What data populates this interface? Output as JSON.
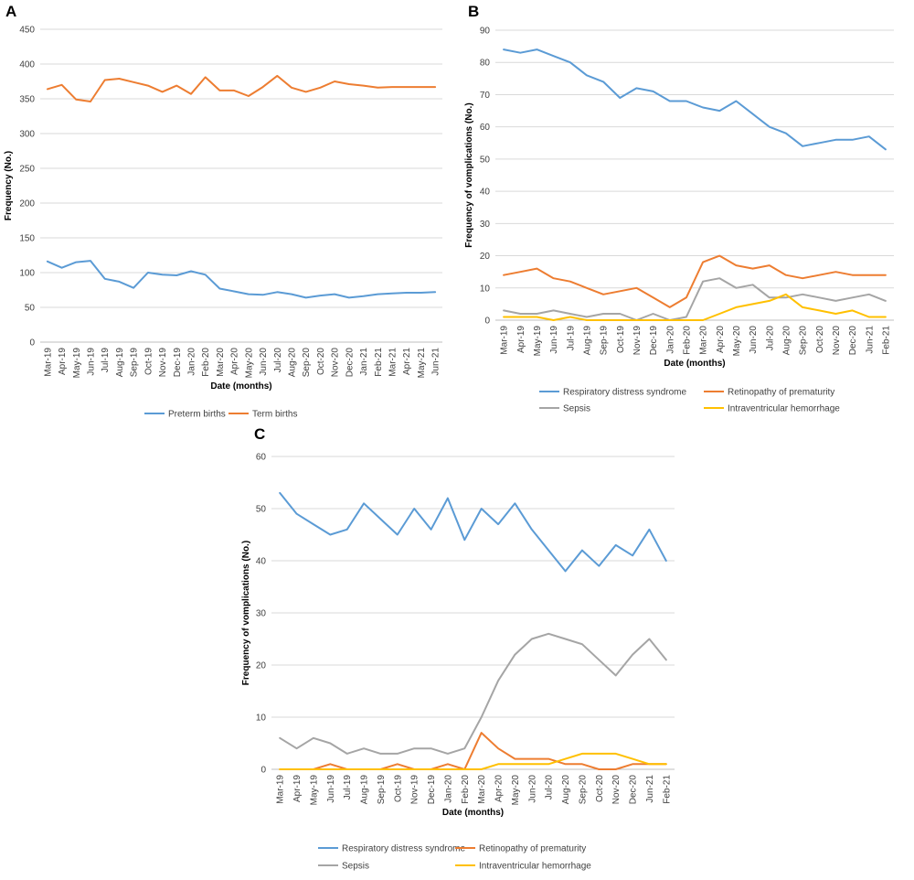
{
  "chart_data": [
    {
      "panel": "A",
      "type": "line",
      "xlabel": "Date (months)",
      "ylabel": "Frequency (No.)",
      "ylim": [
        0,
        450
      ],
      "yticks": [
        0,
        50,
        100,
        150,
        200,
        250,
        300,
        350,
        400,
        450
      ],
      "grid": true,
      "legend": "bottom",
      "categories": [
        "Mar-19",
        "Apr-19",
        "May-19",
        "Jun-19",
        "Jul-19",
        "Aug-19",
        "Sep-19",
        "Oct-19",
        "Nov-19",
        "Dec-19",
        "Jan-20",
        "Feb-20",
        "Mar-20",
        "Apr-20",
        "May-20",
        "Jun-20",
        "Jul-20",
        "Aug-20",
        "Sep-20",
        "Oct-20",
        "Nov-20",
        "Dec-20",
        "Jan-21",
        "Feb-21",
        "Mar-21",
        "Apr-21",
        "May-21",
        "Jun-21"
      ],
      "series": [
        {
          "name": "Preterm births",
          "color": "#5b9bd5",
          "values": [
            116,
            107,
            115,
            117,
            91,
            87,
            78,
            100,
            97,
            96,
            102,
            97,
            77,
            73,
            69,
            68,
            72,
            69,
            64,
            67,
            69,
            64,
            66,
            69,
            70,
            71,
            71,
            72
          ]
        },
        {
          "name": "Term births",
          "color": "#ed7d31",
          "values": [
            364,
            370,
            349,
            346,
            377,
            379,
            374,
            369,
            360,
            369,
            357,
            381,
            362,
            362,
            354,
            367,
            383,
            366,
            360,
            366,
            375,
            371,
            369,
            366,
            367,
            367,
            367,
            367
          ]
        }
      ]
    },
    {
      "panel": "B",
      "type": "line",
      "xlabel": "Date (months)",
      "ylabel": "Frequency of vomplications (No.)",
      "ylim": [
        0,
        90
      ],
      "yticks": [
        0,
        10,
        20,
        30,
        40,
        50,
        60,
        70,
        80,
        90
      ],
      "grid": true,
      "legend": "bottom",
      "categories": [
        "Mar-19",
        "Apr-19",
        "May-19",
        "Jun-19",
        "Jul-19",
        "Aug-19",
        "Sep-19",
        "Oct-19",
        "Nov-19",
        "Dec-19",
        "Jan-20",
        "Feb-20",
        "Mar-20",
        "Apr-20",
        "May-20",
        "Jun-20",
        "Jul-20",
        "Aug-20",
        "Sep-20",
        "Oct-20",
        "Nov-20",
        "Dec-20",
        "Jun-21",
        "Feb-21"
      ],
      "series": [
        {
          "name": "Respiratory distress syndrome",
          "color": "#5b9bd5",
          "values": [
            84,
            83,
            84,
            82,
            80,
            76,
            74,
            69,
            72,
            71,
            68,
            68,
            66,
            65,
            68,
            64,
            60,
            58,
            54,
            55,
            56,
            56,
            57,
            53
          ]
        },
        {
          "name": "Retinopathy of prematurity",
          "color": "#ed7d31",
          "values": [
            14,
            15,
            16,
            13,
            12,
            10,
            8,
            9,
            10,
            7,
            4,
            7,
            18,
            20,
            17,
            16,
            17,
            14,
            13,
            14,
            15,
            14,
            14,
            14
          ]
        },
        {
          "name": "Sepsis",
          "color": "#a5a5a5",
          "values": [
            3,
            2,
            2,
            3,
            2,
            1,
            2,
            2,
            0,
            2,
            0,
            1,
            12,
            13,
            10,
            11,
            7,
            7,
            8,
            7,
            6,
            7,
            8,
            6
          ]
        },
        {
          "name": "Intraventricular hemorrhage",
          "color": "#ffc000",
          "values": [
            1,
            1,
            1,
            0,
            1,
            0,
            0,
            0,
            0,
            0,
            0,
            0,
            0,
            2,
            4,
            5,
            6,
            8,
            4,
            3,
            2,
            3,
            1,
            1
          ]
        }
      ]
    },
    {
      "panel": "C",
      "type": "line",
      "xlabel": "Date (months)",
      "ylabel": "Frequency of vomplications (No.)",
      "ylim": [
        0,
        60
      ],
      "yticks": [
        0,
        10,
        20,
        30,
        40,
        50,
        60
      ],
      "grid": true,
      "legend": "bottom",
      "categories": [
        "Mar-19",
        "Apr-19",
        "May-19",
        "Jun-19",
        "Jul-19",
        "Aug-19",
        "Sep-19",
        "Oct-19",
        "Nov-19",
        "Dec-19",
        "Jan-20",
        "Feb-20",
        "Mar-20",
        "Apr-20",
        "May-20",
        "Jun-20",
        "Jul-20",
        "Aug-20",
        "Sep-20",
        "Oct-20",
        "Nov-20",
        "Dec-20",
        "Jun-21",
        "Feb-21"
      ],
      "series": [
        {
          "name": "Respiratory distress syndrome",
          "color": "#5b9bd5",
          "values": [
            53,
            49,
            47,
            45,
            46,
            51,
            48,
            45,
            50,
            46,
            52,
            44,
            50,
            47,
            51,
            46,
            42,
            38,
            42,
            39,
            43,
            41,
            46,
            40
          ]
        },
        {
          "name": "Retinopathy of prematurity",
          "color": "#ed7d31",
          "values": [
            0,
            0,
            0,
            1,
            0,
            0,
            0,
            1,
            0,
            0,
            1,
            0,
            7,
            4,
            2,
            2,
            2,
            1,
            1,
            0,
            0,
            1,
            1,
            1
          ]
        },
        {
          "name": "Sepsis",
          "color": "#a5a5a5",
          "values": [
            6,
            4,
            6,
            5,
            3,
            4,
            3,
            3,
            4,
            4,
            3,
            4,
            10,
            17,
            22,
            25,
            26,
            25,
            24,
            21,
            18,
            22,
            25,
            21
          ]
        },
        {
          "name": "Intraventricular hemorrhage",
          "color": "#ffc000",
          "values": [
            0,
            0,
            0,
            0,
            0,
            0,
            0,
            0,
            0,
            0,
            0,
            0,
            0,
            1,
            1,
            1,
            1,
            2,
            3,
            3,
            3,
            2,
            1,
            1
          ]
        }
      ]
    }
  ]
}
